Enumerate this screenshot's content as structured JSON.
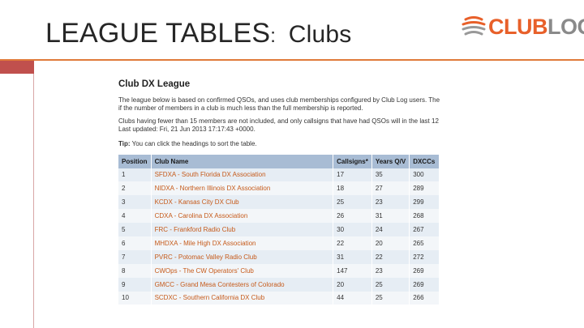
{
  "slide": {
    "title_main": "LEAGUE TABLES",
    "title_colon": ":",
    "title_sub": "Clubs"
  },
  "logo": {
    "part1": "CLUB",
    "part2": "LOG"
  },
  "page": {
    "heading": "Club DX League",
    "para1_line1": "The league below is based on confirmed QSOs, and uses club memberships configured by Club Log users. The",
    "para1_line2": "if the number of members in a club is much less than the full membership is reported.",
    "para2_line1": "Clubs having fewer than 15 members are not included, and only callsigns that have had QSOs will in the last 12",
    "para2_line2": "Last updated: Fri, 21 Jun 2013 17:17:43 +0000.",
    "tip_label": "Tip:",
    "tip_text": " You can click the headings to sort the table."
  },
  "table": {
    "headers": [
      "Position",
      "Club Name",
      "Callsigns*",
      "Years Q/V",
      "DXCCs"
    ],
    "rows": [
      [
        "1",
        "SFDXA - South Florida DX Association",
        "17",
        "35",
        "300"
      ],
      [
        "2",
        "NIDXA - Northern Illinois DX Association",
        "18",
        "27",
        "289"
      ],
      [
        "3",
        "KCDX - Kansas City DX Club",
        "25",
        "23",
        "299"
      ],
      [
        "4",
        "CDXA - Carolina DX Association",
        "26",
        "31",
        "268"
      ],
      [
        "5",
        "FRC - Frankford Radio Club",
        "30",
        "24",
        "267"
      ],
      [
        "6",
        "MHDXA - Mile High DX Association",
        "22",
        "20",
        "265"
      ],
      [
        "7",
        "PVRC - Potomac Valley Radio Club",
        "31",
        "22",
        "272"
      ],
      [
        "8",
        "CWOps - The CW Operators' Club",
        "147",
        "23",
        "269"
      ],
      [
        "9",
        "GMCC - Grand Mesa Contesters of Colorado",
        "20",
        "25",
        "269"
      ],
      [
        "10",
        "SCDXC - Southern California DX Club",
        "44",
        "25",
        "266"
      ]
    ]
  },
  "colors": {
    "accent_orange": "#e07a3a",
    "accent_red": "#c0504d",
    "table_header": "#a8bcd4",
    "link_orange": "#c65a1a"
  }
}
